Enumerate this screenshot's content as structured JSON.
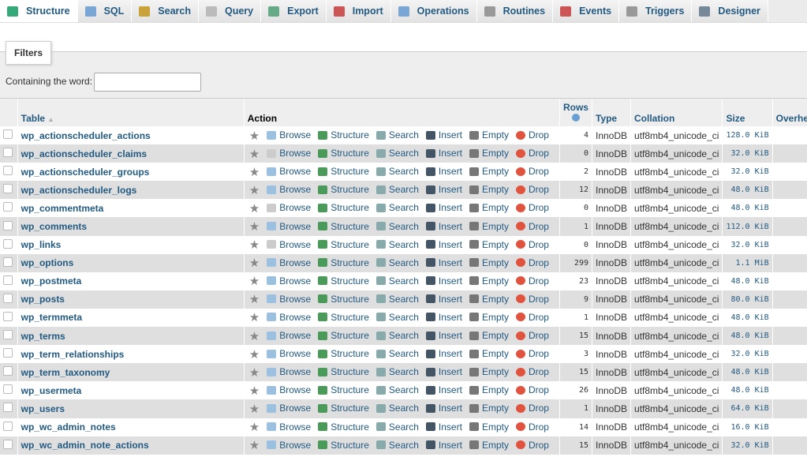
{
  "tabs": [
    {
      "label": "Structure",
      "icon": "structure-icon",
      "active": true
    },
    {
      "label": "SQL",
      "icon": "sql-icon"
    },
    {
      "label": "Search",
      "icon": "search-icon"
    },
    {
      "label": "Query",
      "icon": "query-icon"
    },
    {
      "label": "Export",
      "icon": "export-icon"
    },
    {
      "label": "Import",
      "icon": "import-icon"
    },
    {
      "label": "Operations",
      "icon": "operations-icon"
    },
    {
      "label": "Routines",
      "icon": "routines-icon"
    },
    {
      "label": "Events",
      "icon": "events-icon"
    },
    {
      "label": "Triggers",
      "icon": "triggers-icon"
    },
    {
      "label": "Designer",
      "icon": "designer-icon"
    }
  ],
  "filters": {
    "legend": "Filters",
    "label": "Containing the word:",
    "value": ""
  },
  "headers": {
    "table": "Table",
    "action": "Action",
    "rows": "Rows",
    "type": "Type",
    "collation": "Collation",
    "size": "Size",
    "overhead": "Overhe"
  },
  "actions": {
    "browse": "Browse",
    "structure": "Structure",
    "search": "Search",
    "insert": "Insert",
    "empty": "Empty",
    "drop": "Drop"
  },
  "tables": [
    {
      "name": "wp_actionscheduler_actions",
      "rows": "4",
      "type": "InnoDB",
      "collation": "utf8mb4_unicode_ci",
      "size": "128.0 KiB"
    },
    {
      "name": "wp_actionscheduler_claims",
      "rows": "0",
      "type": "InnoDB",
      "collation": "utf8mb4_unicode_ci",
      "size": "32.0 KiB"
    },
    {
      "name": "wp_actionscheduler_groups",
      "rows": "2",
      "type": "InnoDB",
      "collation": "utf8mb4_unicode_ci",
      "size": "32.0 KiB"
    },
    {
      "name": "wp_actionscheduler_logs",
      "rows": "12",
      "type": "InnoDB",
      "collation": "utf8mb4_unicode_ci",
      "size": "48.0 KiB"
    },
    {
      "name": "wp_commentmeta",
      "rows": "0",
      "type": "InnoDB",
      "collation": "utf8mb4_unicode_ci",
      "size": "48.0 KiB"
    },
    {
      "name": "wp_comments",
      "rows": "1",
      "type": "InnoDB",
      "collation": "utf8mb4_unicode_ci",
      "size": "112.0 KiB"
    },
    {
      "name": "wp_links",
      "rows": "0",
      "type": "InnoDB",
      "collation": "utf8mb4_unicode_ci",
      "size": "32.0 KiB"
    },
    {
      "name": "wp_options",
      "rows": "299",
      "type": "InnoDB",
      "collation": "utf8mb4_unicode_ci",
      "size": "1.1 MiB"
    },
    {
      "name": "wp_postmeta",
      "rows": "23",
      "type": "InnoDB",
      "collation": "utf8mb4_unicode_ci",
      "size": "48.0 KiB"
    },
    {
      "name": "wp_posts",
      "rows": "9",
      "type": "InnoDB",
      "collation": "utf8mb4_unicode_ci",
      "size": "80.0 KiB"
    },
    {
      "name": "wp_termmeta",
      "rows": "1",
      "type": "InnoDB",
      "collation": "utf8mb4_unicode_ci",
      "size": "48.0 KiB"
    },
    {
      "name": "wp_terms",
      "rows": "15",
      "type": "InnoDB",
      "collation": "utf8mb4_unicode_ci",
      "size": "48.0 KiB"
    },
    {
      "name": "wp_term_relationships",
      "rows": "3",
      "type": "InnoDB",
      "collation": "utf8mb4_unicode_ci",
      "size": "32.0 KiB"
    },
    {
      "name": "wp_term_taxonomy",
      "rows": "15",
      "type": "InnoDB",
      "collation": "utf8mb4_unicode_ci",
      "size": "48.0 KiB"
    },
    {
      "name": "wp_usermeta",
      "rows": "26",
      "type": "InnoDB",
      "collation": "utf8mb4_unicode_ci",
      "size": "48.0 KiB"
    },
    {
      "name": "wp_users",
      "rows": "1",
      "type": "InnoDB",
      "collation": "utf8mb4_unicode_ci",
      "size": "64.0 KiB"
    },
    {
      "name": "wp_wc_admin_notes",
      "rows": "14",
      "type": "InnoDB",
      "collation": "utf8mb4_unicode_ci",
      "size": "16.0 KiB"
    },
    {
      "name": "wp_wc_admin_note_actions",
      "rows": "15",
      "type": "InnoDB",
      "collation": "utf8mb4_unicode_ci",
      "size": "32.0 KiB"
    }
  ]
}
